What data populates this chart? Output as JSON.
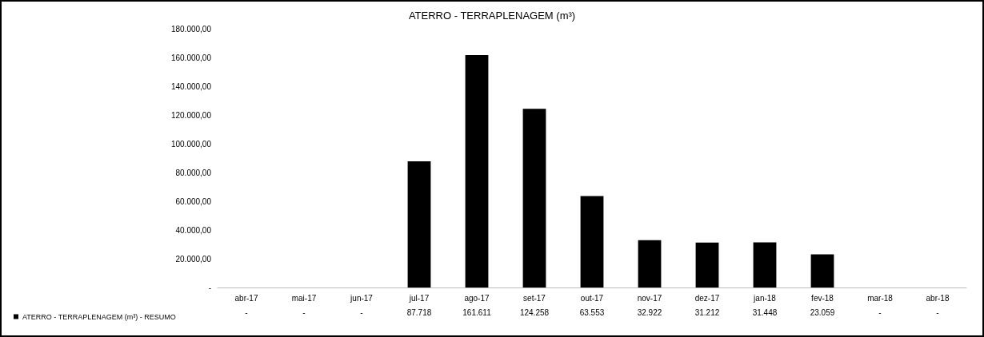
{
  "chart_data": {
    "type": "bar",
    "title": "ATERRO - TERRAPLENAGEM (m³)",
    "categories": [
      "abr-17",
      "mai-17",
      "jun-17",
      "jul-17",
      "ago-17",
      "set-17",
      "out-17",
      "nov-17",
      "dez-17",
      "jan-18",
      "fev-18",
      "mar-18",
      "abr-18"
    ],
    "series": [
      {
        "name": "ATERRO - TERRAPLENAGEM (m³) - RESUMO",
        "color": "#000000",
        "values": [
          0,
          0,
          0,
          87718,
          161611,
          124258,
          63553,
          32922,
          31212,
          31448,
          23059,
          0,
          0
        ],
        "value_labels": [
          "-",
          "-",
          "-",
          "87.718",
          "161.611",
          "124.258",
          "63.553",
          "32.922",
          "31.212",
          "31.448",
          "23.059",
          "-",
          "-"
        ]
      }
    ],
    "ylim": [
      0,
      180000
    ],
    "yticks": [
      {
        "value": 0,
        "label": "-"
      },
      {
        "value": 20000,
        "label": "20.000,00"
      },
      {
        "value": 40000,
        "label": "40.000,00"
      },
      {
        "value": 60000,
        "label": "60.000,00"
      },
      {
        "value": 80000,
        "label": "80.000,00"
      },
      {
        "value": 100000,
        "label": "100.000,00"
      },
      {
        "value": 120000,
        "label": "120.000,00"
      },
      {
        "value": 140000,
        "label": "140.000,00"
      },
      {
        "value": 160000,
        "label": "160.000,00"
      },
      {
        "value": 180000,
        "label": "180.000,00"
      }
    ],
    "grid": false,
    "legend": "bottom left"
  }
}
